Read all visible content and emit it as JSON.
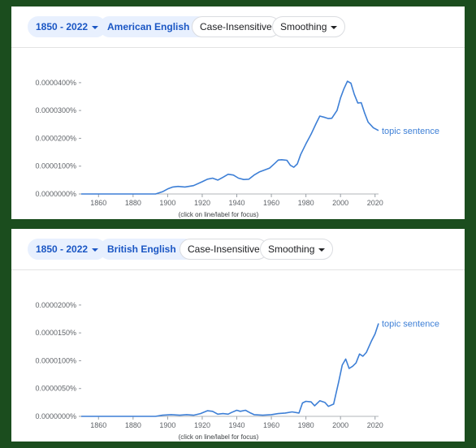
{
  "panels": [
    {
      "filters": {
        "date_range": "1850 - 2022",
        "corpus": "American English",
        "case": "Case-Insensitive",
        "smoothing": "Smoothing"
      },
      "hint": "(click on line/label for focus)",
      "chart_data": {
        "type": "line",
        "x_ticks": [
          1860,
          1880,
          1900,
          1920,
          1940,
          1960,
          1980,
          2000,
          2020
        ],
        "y_ticks": [
          0,
          1e-07,
          2e-07,
          3e-07,
          4e-07
        ],
        "y_tick_labels": [
          "0.0000000%",
          "0.0000100%",
          "0.0000200%",
          "0.0000300%",
          "0.0000400%"
        ],
        "xlim": [
          1850,
          2022
        ],
        "ylim": [
          0,
          4.2e-07
        ],
        "grid": false,
        "line_color": "#3d7fd6",
        "series": [
          {
            "name": "topic sentence",
            "x": [
              1850,
              1880,
              1893,
              1897,
              1900,
              1903,
              1906,
              1910,
              1915,
              1920,
              1923,
              1926,
              1929,
              1932,
              1935,
              1938,
              1941,
              1944,
              1947,
              1950,
              1953,
              1956,
              1959,
              1962,
              1964,
              1966,
              1969,
              1971,
              1973,
              1975,
              1977,
              1980,
              1983,
              1986,
              1988,
              1991,
              1993,
              1995,
              1998,
              2000,
              2002,
              2004,
              2006,
              2008,
              2010,
              2012,
              2014,
              2016,
              2019,
              2022
            ],
            "y": [
              0,
              0,
              0,
              8e-09,
              1.8e-08,
              2.5e-08,
              2.7e-08,
              2.5e-08,
              3e-08,
              4.4e-08,
              5.3e-08,
              5.7e-08,
              5e-08,
              6e-08,
              7.1e-08,
              6.8e-08,
              5.7e-08,
              5.2e-08,
              5.3e-08,
              6.8e-08,
              7.9e-08,
              8.6e-08,
              9.3e-08,
              1.1e-07,
              1.22e-07,
              1.23e-07,
              1.21e-07,
              1.03e-07,
              9.6e-08,
              1.08e-07,
              1.42e-07,
              1.8e-07,
              2.15e-07,
              2.55e-07,
              2.8e-07,
              2.75e-07,
              2.71e-07,
              2.72e-07,
              3e-07,
              3.45e-07,
              3.78e-07,
              4.05e-07,
              3.98e-07,
              3.58e-07,
              3.27e-07,
              3.28e-07,
              2.9e-07,
              2.58e-07,
              2.38e-07,
              2.28e-07
            ]
          }
        ]
      }
    },
    {
      "filters": {
        "date_range": "1850 - 2022",
        "corpus": "British English",
        "case": "Case-Insensitive",
        "smoothing": "Smoothing"
      },
      "hint": "(click on line/label for focus)",
      "chart_data": {
        "type": "line",
        "x_ticks": [
          1860,
          1880,
          1900,
          1920,
          1940,
          1960,
          1980,
          2000,
          2020
        ],
        "y_ticks": [
          0,
          5e-08,
          1e-07,
          1.5e-07,
          2e-07
        ],
        "y_tick_labels": [
          "0.0000000%",
          "0.0000050%",
          "0.0000100%",
          "0.0000150%",
          "0.0000200%"
        ],
        "xlim": [
          1850,
          2022
        ],
        "ylim": [
          0,
          2.1e-07
        ],
        "grid": false,
        "line_color": "#3d7fd6",
        "series": [
          {
            "name": "topic sentence",
            "x": [
              1850,
              1893,
              1897,
              1902,
              1907,
              1911,
              1915,
              1919,
              1923,
              1926,
              1929,
              1932,
              1935,
              1937,
              1940,
              1942,
              1945,
              1948,
              1950,
              1955,
              1960,
              1964,
              1968,
              1972,
              1976,
              1978,
              1980,
              1983,
              1985,
              1988,
              1991,
              1993,
              1996,
              1999,
              2001,
              2003,
              2005,
              2007,
              2009,
              2011,
              2013,
              2015,
              2018,
              2020,
              2022
            ],
            "y": [
              0,
              0,
              2e-09,
              3e-09,
              2e-09,
              3e-09,
              2e-09,
              5e-09,
              1e-08,
              9e-09,
              4e-09,
              5e-09,
              4e-09,
              7e-09,
              1.1e-08,
              9e-09,
              1.1e-08,
              6e-09,
              3e-09,
              2e-09,
              3e-09,
              5e-09,
              6e-09,
              8e-09,
              6e-09,
              2.4e-08,
              2.7e-08,
              2.6e-08,
              1.9e-08,
              2.8e-08,
              2.5e-08,
              1.8e-08,
              2.2e-08,
              6.3e-08,
              9.2e-08,
              1.03e-07,
              8.6e-08,
              9e-08,
              9.6e-08,
              1.12e-07,
              1.08e-07,
              1.15e-07,
              1.36e-07,
              1.48e-07,
              1.67e-07
            ]
          }
        ]
      }
    }
  ]
}
